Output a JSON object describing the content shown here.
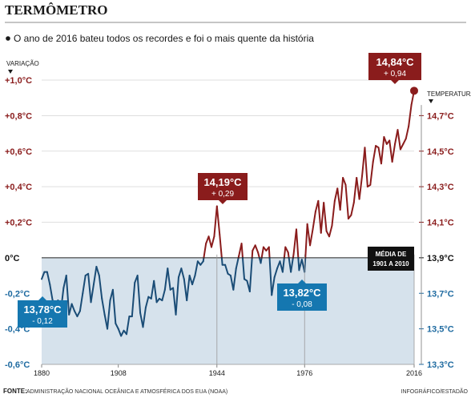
{
  "chart_data": {
    "type": "line",
    "title": "TERMÔMETRO",
    "subtitle": "O ano de 2016 bateu todos os recordes e foi o mais quente da história",
    "left_axis_label": "VARIAÇÃO",
    "right_axis_label": "TEMPERATURA",
    "left_ticks": [
      {
        "value": 1.0,
        "label": "+1,0°C"
      },
      {
        "value": 0.8,
        "label": "+0,8°C"
      },
      {
        "value": 0.6,
        "label": "+0,6°C"
      },
      {
        "value": 0.4,
        "label": "+0,4°C"
      },
      {
        "value": 0.2,
        "label": "+0,2°C"
      },
      {
        "value": 0.0,
        "label": "0°C"
      },
      {
        "value": -0.2,
        "label": "-0,2°C"
      },
      {
        "value": -0.4,
        "label": "-0,4°C"
      },
      {
        "value": -0.6,
        "label": "-0,6°C"
      }
    ],
    "right_ticks": [
      {
        "value": 0.8,
        "label": "14,7°C"
      },
      {
        "value": 0.6,
        "label": "14,5°C"
      },
      {
        "value": 0.4,
        "label": "14,3°C"
      },
      {
        "value": 0.2,
        "label": "14,1°C"
      },
      {
        "value": 0.0,
        "label": "13,9°C"
      },
      {
        "value": -0.2,
        "label": "13,7°C"
      },
      {
        "value": -0.4,
        "label": "13,5°C"
      },
      {
        "value": -0.6,
        "label": "13,3°C"
      }
    ],
    "x_ticks": [
      1880,
      1908,
      1944,
      1976,
      2016
    ],
    "xlim": [
      1880,
      2016
    ],
    "ylim": [
      -0.6,
      1.0
    ],
    "baseline_label": [
      "MÉDIA DE",
      "1901 A 2010"
    ],
    "colors": {
      "positive": "#8a1c1c",
      "negative": "#1a4c76",
      "shade": "#d6e2ec",
      "callout_red": "#8a1c1c",
      "callout_blue": "#1577b0",
      "black_box": "#111111"
    },
    "callouts": [
      {
        "id": "max2016",
        "year": 2016,
        "value": 0.94,
        "temp": "14,84°C",
        "delta": "+ 0,94"
      },
      {
        "id": "peak1944",
        "year": 1944,
        "value": 0.29,
        "temp": "14,19°C",
        "delta": "+ 0,29"
      },
      {
        "id": "low1880",
        "year": 1880,
        "value": -0.12,
        "temp": "13,78°C",
        "delta": "- 0,12"
      },
      {
        "id": "low1976",
        "year": 1976,
        "value": -0.08,
        "temp": "13,82°C",
        "delta": "- 0,08"
      }
    ],
    "years": [
      1880,
      1881,
      1882,
      1883,
      1884,
      1885,
      1886,
      1887,
      1888,
      1889,
      1890,
      1891,
      1892,
      1893,
      1894,
      1895,
      1896,
      1897,
      1898,
      1899,
      1900,
      1901,
      1902,
      1903,
      1904,
      1905,
      1906,
      1907,
      1908,
      1909,
      1910,
      1911,
      1912,
      1913,
      1914,
      1915,
      1916,
      1917,
      1918,
      1919,
      1920,
      1921,
      1922,
      1923,
      1924,
      1925,
      1926,
      1927,
      1928,
      1929,
      1930,
      1931,
      1932,
      1933,
      1934,
      1935,
      1936,
      1937,
      1938,
      1939,
      1940,
      1941,
      1942,
      1943,
      1944,
      1945,
      1946,
      1947,
      1948,
      1949,
      1950,
      1951,
      1952,
      1953,
      1954,
      1955,
      1956,
      1957,
      1958,
      1959,
      1960,
      1961,
      1962,
      1963,
      1964,
      1965,
      1966,
      1967,
      1968,
      1969,
      1970,
      1971,
      1972,
      1973,
      1974,
      1975,
      1976,
      1977,
      1978,
      1979,
      1980,
      1981,
      1982,
      1983,
      1984,
      1985,
      1986,
      1987,
      1988,
      1989,
      1990,
      1991,
      1992,
      1993,
      1994,
      1995,
      1996,
      1997,
      1998,
      1999,
      2000,
      2001,
      2002,
      2003,
      2004,
      2005,
      2006,
      2007,
      2008,
      2009,
      2010,
      2011,
      2012,
      2013,
      2014,
      2015,
      2016
    ],
    "values": [
      -0.12,
      -0.08,
      -0.08,
      -0.15,
      -0.24,
      -0.25,
      -0.24,
      -0.3,
      -0.17,
      -0.1,
      -0.32,
      -0.26,
      -0.3,
      -0.33,
      -0.3,
      -0.2,
      -0.1,
      -0.09,
      -0.25,
      -0.15,
      -0.05,
      -0.1,
      -0.23,
      -0.32,
      -0.4,
      -0.24,
      -0.18,
      -0.37,
      -0.4,
      -0.44,
      -0.41,
      -0.43,
      -0.33,
      -0.33,
      -0.14,
      -0.1,
      -0.31,
      -0.39,
      -0.28,
      -0.22,
      -0.23,
      -0.13,
      -0.25,
      -0.23,
      -0.24,
      -0.18,
      -0.06,
      -0.18,
      -0.17,
      -0.32,
      -0.11,
      -0.06,
      -0.12,
      -0.24,
      -0.1,
      -0.15,
      -0.1,
      -0.02,
      -0.04,
      -0.02,
      0.08,
      0.12,
      0.06,
      0.12,
      0.29,
      0.13,
      -0.04,
      -0.04,
      -0.09,
      -0.1,
      -0.18,
      -0.06,
      0.01,
      0.08,
      -0.12,
      -0.13,
      -0.19,
      0.04,
      0.07,
      0.03,
      -0.03,
      0.06,
      0.04,
      0.06,
      -0.21,
      -0.11,
      -0.06,
      -0.02,
      -0.08,
      0.06,
      0.03,
      -0.08,
      0.02,
      0.16,
      -0.07,
      -0.01,
      -0.08,
      0.19,
      0.07,
      0.16,
      0.26,
      0.32,
      0.14,
      0.31,
      0.15,
      0.12,
      0.18,
      0.32,
      0.39,
      0.27,
      0.45,
      0.41,
      0.22,
      0.24,
      0.31,
      0.45,
      0.33,
      0.46,
      0.62,
      0.4,
      0.41,
      0.54,
      0.63,
      0.62,
      0.53,
      0.68,
      0.64,
      0.66,
      0.54,
      0.64,
      0.72,
      0.61,
      0.64,
      0.67,
      0.74,
      0.86,
      0.94
    ]
  },
  "source": {
    "label": "FONTE:",
    "text": "ADMINISTRAÇÃO NACIONAL OCEÂNICA E ATMOSFÉRICA DOS EUA (NOAA)",
    "credit": "INFOGRÁFICO/ESTADÃO"
  }
}
